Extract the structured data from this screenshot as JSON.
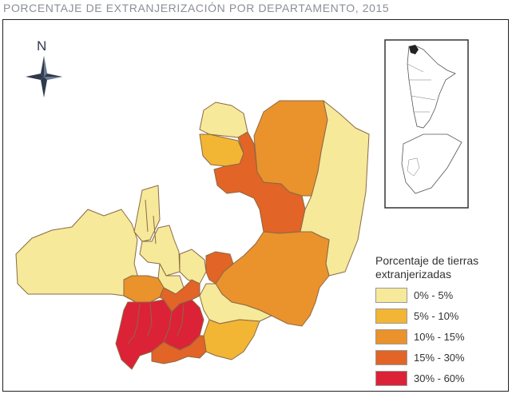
{
  "title": "PORCENTAJE DE EXTRANJERIZACIÓN POR DEPARTAMENTO, 2015",
  "north_label": "N",
  "legend": {
    "title": "Porcentaje de tierras extranjerizadas",
    "items": [
      {
        "label": "0% - 5%",
        "color": "#f6e99a"
      },
      {
        "label": "5% - 10%",
        "color": "#f2b534"
      },
      {
        "label": "10% - 15%",
        "color": "#ea922c"
      },
      {
        "label": "15% - 30%",
        "color": "#e26426"
      },
      {
        "label": "30% - 60%",
        "color": "#dc2236"
      }
    ]
  },
  "colors": {
    "outline": "#8a6a45",
    "inset_outline": "#555555"
  },
  "icons": {
    "compass": "compass-rose-icon"
  }
}
